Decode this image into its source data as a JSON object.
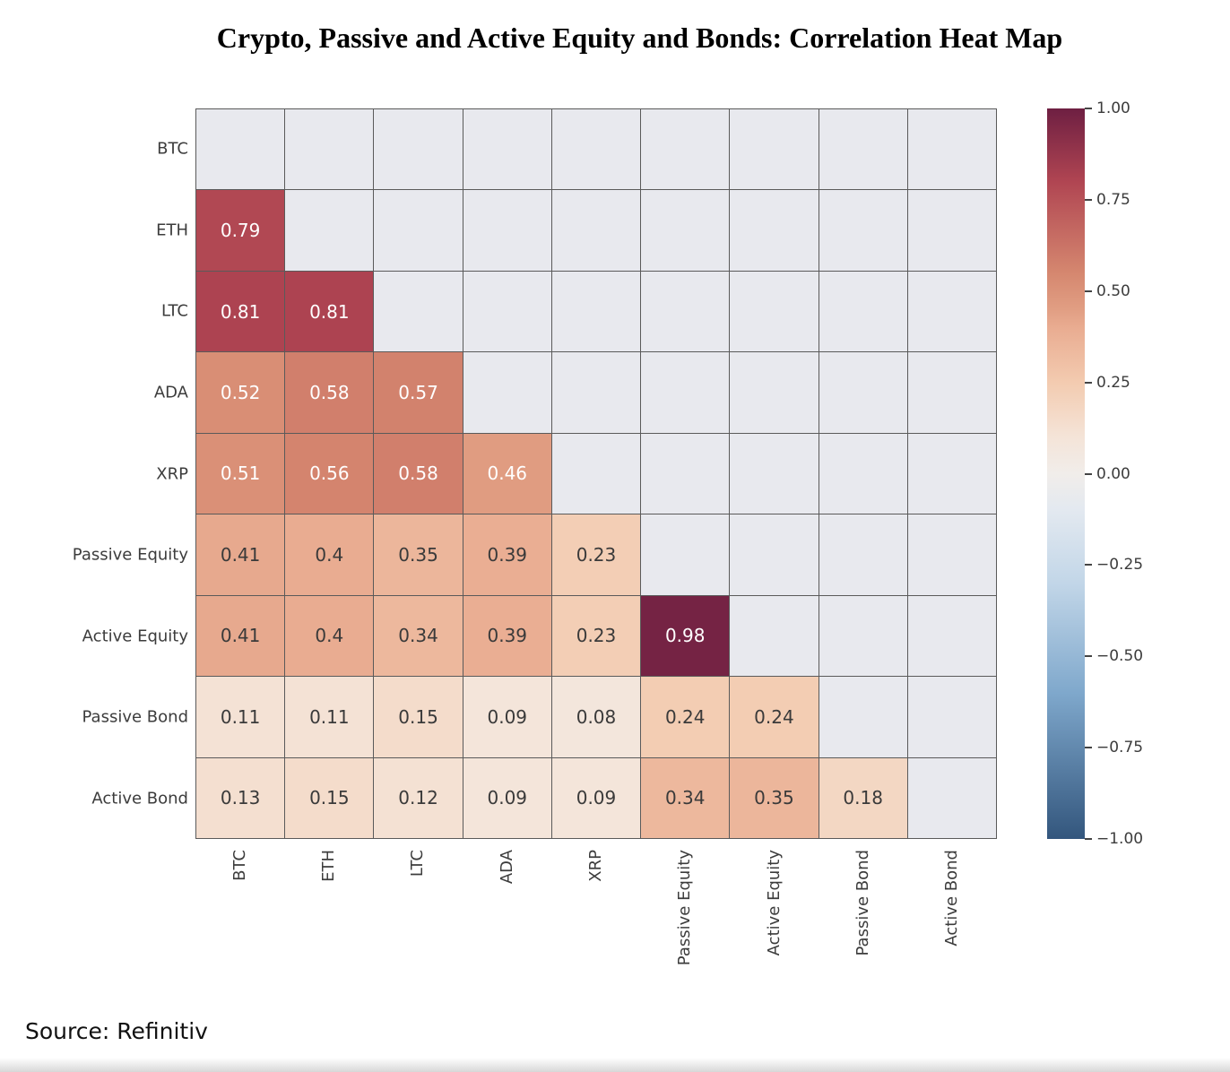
{
  "page": {
    "title": "Crypto, Passive and Active Equity and Bonds: Correlation Heat Map",
    "source": "Source: Refinitiv"
  },
  "chart_data": {
    "type": "heatmap",
    "title": "Crypto, Passive and Active Equity and Bonds: Correlation Heat Map",
    "categories": [
      "BTC",
      "ETH",
      "LTC",
      "ADA",
      "XRP",
      "Passive Equity",
      "Active Equity",
      "Passive Bond",
      "Active Bond"
    ],
    "mask": "upper-triangle-and-diagonal-hidden",
    "matrix": [
      [
        null,
        null,
        null,
        null,
        null,
        null,
        null,
        null,
        null
      ],
      [
        0.79,
        null,
        null,
        null,
        null,
        null,
        null,
        null,
        null
      ],
      [
        0.81,
        0.81,
        null,
        null,
        null,
        null,
        null,
        null,
        null
      ],
      [
        0.52,
        0.58,
        0.57,
        null,
        null,
        null,
        null,
        null,
        null
      ],
      [
        0.51,
        0.56,
        0.58,
        0.46,
        null,
        null,
        null,
        null,
        null
      ],
      [
        0.41,
        0.4,
        0.35,
        0.39,
        0.23,
        null,
        null,
        null,
        null
      ],
      [
        0.41,
        0.4,
        0.34,
        0.39,
        0.23,
        0.98,
        null,
        null,
        null
      ],
      [
        0.11,
        0.11,
        0.15,
        0.09,
        0.08,
        0.24,
        0.24,
        null,
        null
      ],
      [
        0.13,
        0.15,
        0.12,
        0.09,
        0.09,
        0.34,
        0.35,
        0.18,
        null
      ]
    ],
    "colorbar": {
      "position": "right",
      "range": [
        -1,
        1
      ],
      "ticks": [
        {
          "value": 1.0,
          "label": "1.00"
        },
        {
          "value": 0.75,
          "label": "0.75"
        },
        {
          "value": 0.5,
          "label": "0.50"
        },
        {
          "value": 0.25,
          "label": "0.25"
        },
        {
          "value": 0.0,
          "label": "0.00"
        },
        {
          "value": -0.25,
          "label": "−0.25"
        },
        {
          "value": -0.5,
          "label": "−0.50"
        },
        {
          "value": -0.75,
          "label": "−0.75"
        },
        {
          "value": -1.0,
          "label": "−1.00"
        }
      ]
    },
    "colormap_anchors": [
      {
        "v": 1.0,
        "c": "#6e1f42"
      },
      {
        "v": 0.8,
        "c": "#b04552"
      },
      {
        "v": 0.55,
        "c": "#d5876f"
      },
      {
        "v": 0.45,
        "c": "#e19e83"
      },
      {
        "v": 0.4,
        "c": "#e9ac91"
      },
      {
        "v": 0.25,
        "c": "#f3cbb0"
      },
      {
        "v": 0.1,
        "c": "#f4e4d8"
      },
      {
        "v": 0.0,
        "c": "#f1edea"
      },
      {
        "v": -0.1,
        "c": "#e3e9f0"
      },
      {
        "v": -0.3,
        "c": "#c2d6e8"
      },
      {
        "v": -0.6,
        "c": "#7fa8cc"
      },
      {
        "v": -1.0,
        "c": "#33567d"
      }
    ],
    "masked_cell_color": "#e8e9ee",
    "grid_line_color": "#5a5a5a",
    "value_text_light": "#ffffff",
    "value_text_dark": "#3a3a3a",
    "value_text_light_threshold": 0.45
  }
}
